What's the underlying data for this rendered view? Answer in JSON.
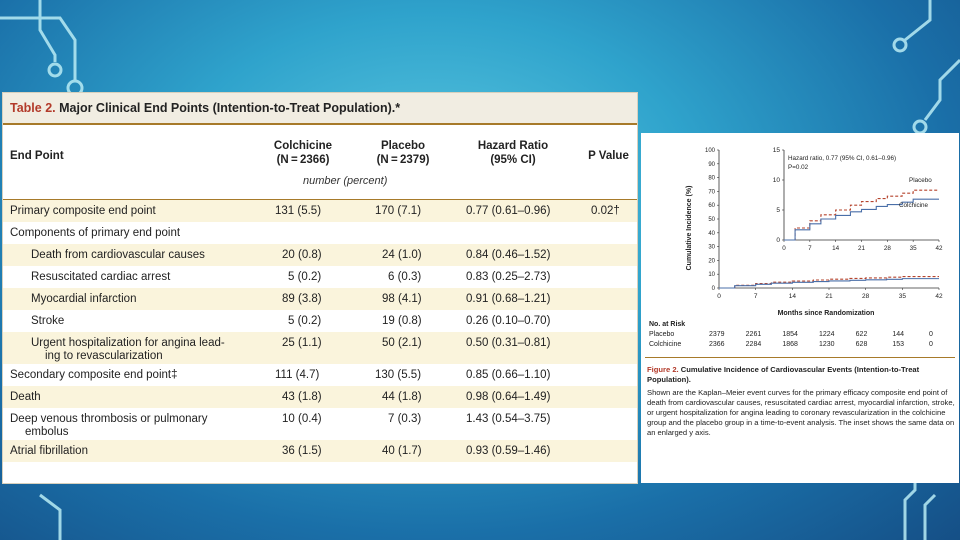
{
  "table": {
    "label": "Table 2.",
    "title": "Major Clinical End Points (Intention-to-Treat Population).*",
    "headers": {
      "endpoint": "End Point",
      "colchicine": [
        "Colchicine",
        "(N = 2366)"
      ],
      "placebo": [
        "Placebo",
        "(N = 2379)"
      ],
      "hr": [
        "Hazard Ratio",
        "(95% CI)"
      ],
      "p": "P Value"
    },
    "units": "number (percent)",
    "rows": [
      {
        "endpoint": "Primary composite end point",
        "colchicine": "131 (5.5)",
        "placebo": "170 (7.1)",
        "hr": "0.77 (0.61–0.96)",
        "p": "0.02†"
      },
      {
        "endpoint": "Components of primary end point",
        "colchicine": "",
        "placebo": "",
        "hr": "",
        "p": ""
      },
      {
        "endpoint": "Death from cardiovascular causes",
        "colchicine": "20 (0.8)",
        "placebo": "24 (1.0)",
        "hr": "0.84 (0.46–1.52)",
        "p": ""
      },
      {
        "endpoint": "Resuscitated cardiac arrest",
        "colchicine": "5 (0.2)",
        "placebo": "6 (0.3)",
        "hr": "0.83 (0.25–2.73)",
        "p": ""
      },
      {
        "endpoint": "Myocardial infarction",
        "colchicine": "89 (3.8)",
        "placebo": "98 (4.1)",
        "hr": "0.91 (0.68–1.21)",
        "p": ""
      },
      {
        "endpoint": "Stroke",
        "colchicine": "5 (0.2)",
        "placebo": "19 (0.8)",
        "hr": "0.26 (0.10–0.70)",
        "p": ""
      },
      {
        "endpoint": "Urgent hospitalization for angina lead-",
        "endpoint2": "ing to revascularization",
        "colchicine": "25 (1.1)",
        "placebo": "50 (2.1)",
        "hr": "0.50 (0.31–0.81)",
        "p": ""
      },
      {
        "endpoint": "Secondary composite end point‡",
        "colchicine": "111 (4.7)",
        "placebo": "130 (5.5)",
        "hr": "0.85 (0.66–1.10)",
        "p": ""
      },
      {
        "endpoint": "Death",
        "colchicine": "43 (1.8)",
        "placebo": "44 (1.8)",
        "hr": "0.98 (0.64–1.49)",
        "p": ""
      },
      {
        "endpoint": "Deep venous thrombosis or pulmonary",
        "endpoint2": "embolus",
        "colchicine": "10 (0.4)",
        "placebo": "7 (0.3)",
        "hr": "1.43 (0.54–3.75)",
        "p": ""
      },
      {
        "endpoint": "Atrial fibrillation",
        "colchicine": "36 (1.5)",
        "placebo": "40 (1.7)",
        "hr": "0.93 (0.59–1.46)",
        "p": ""
      }
    ]
  },
  "figure": {
    "ylabel": "Cumulative Incidence (%)",
    "xlabel": "Months since Randomization",
    "inset_annotation": [
      "Hazard ratio, 0.77 (95% CI, 0.61–0.96)",
      "P=0.02"
    ],
    "at_risk_title": "No. at Risk",
    "at_risk": [
      {
        "group": "Placebo",
        "values": [
          "2379",
          "2261",
          "1854",
          "1224",
          "622",
          "144",
          "0"
        ]
      },
      {
        "group": "Colchicine",
        "values": [
          "2366",
          "2284",
          "1868",
          "1230",
          "628",
          "153",
          "0"
        ]
      }
    ],
    "caption_label": "Figure 2.",
    "caption_title": "Cumulative Incidence of Cardiovascular Events (Intention-to-Treat Population).",
    "caption_body": "Shown are the Kaplan–Meier event curves for the primary efficacy composite end point of death from cardiovascular causes, resuscitated cardiac arrest, myocardial infarction, stroke, or urgent hospitalization for angina leading to coronary revascularization in the colchicine group and the placebo group in a time-to-event analysis. The inset shows the same data on an enlarged y axis.",
    "colors": {
      "placebo": "#b5442d",
      "colchicine": "#4a6fa8"
    }
  },
  "chart_data": {
    "type": "line",
    "xlabel": "Months since Randomization",
    "ylabel": "Cumulative Incidence (%)",
    "xlim": [
      0,
      42
    ],
    "ylim": [
      0,
      100
    ],
    "x_ticks": [
      "0",
      "7",
      "14",
      "21",
      "28",
      "35",
      "42"
    ],
    "y_ticks": [
      "0",
      "10",
      "20",
      "30",
      "40",
      "50",
      "60",
      "70",
      "80",
      "90",
      "100"
    ],
    "series": [
      {
        "name": "Placebo",
        "x": [
          0,
          3,
          7,
          10,
          14,
          18,
          21,
          25,
          28,
          32,
          35,
          42
        ],
        "y": [
          0,
          2.0,
          3.2,
          4.2,
          5.0,
          5.8,
          6.4,
          6.9,
          7.3,
          7.8,
          8.3,
          8.3
        ]
      },
      {
        "name": "Colchicine",
        "x": [
          0,
          3,
          7,
          10,
          14,
          18,
          21,
          25,
          28,
          32,
          35,
          42
        ],
        "y": [
          0,
          1.7,
          2.7,
          3.5,
          4.1,
          4.7,
          5.1,
          5.6,
          5.9,
          6.3,
          6.8,
          6.8
        ]
      }
    ],
    "inset": {
      "xlim": [
        0,
        42
      ],
      "ylim": [
        0,
        15
      ],
      "x_ticks": [
        "0",
        "7",
        "14",
        "21",
        "28",
        "35",
        "42"
      ],
      "y_ticks": [
        "0",
        "5",
        "10",
        "15"
      ]
    }
  }
}
